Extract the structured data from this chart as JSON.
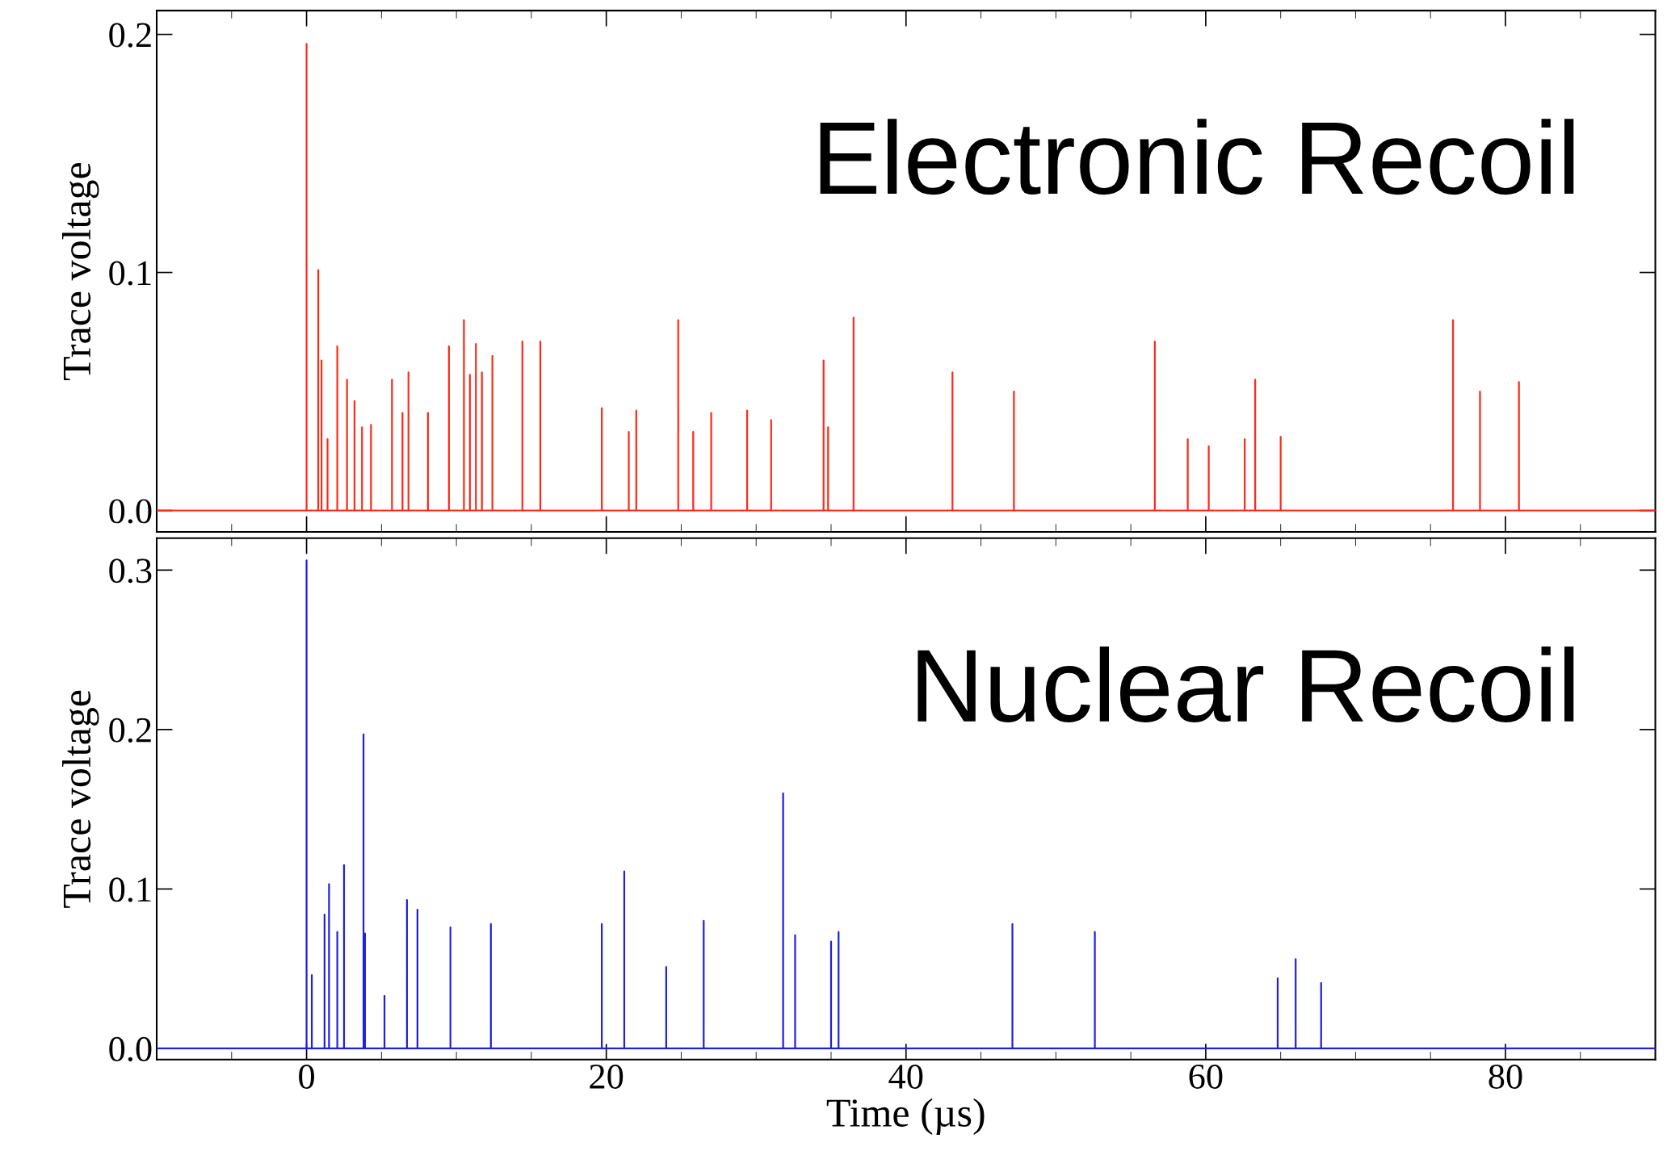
{
  "chart_data": [
    {
      "type": "line",
      "ylabel": "Trace voltage",
      "annotations": [
        "Electronic Recoil"
      ],
      "xlim": [
        -10,
        90
      ],
      "ylim": [
        -0.009,
        0.21
      ],
      "xticks": [
        0,
        20,
        40,
        60,
        80
      ],
      "yticks": [
        {
          "value": 0,
          "label": "0.0"
        },
        {
          "value": 0.1,
          "label": "0.1"
        },
        {
          "value": 0.2,
          "label": "0.2"
        }
      ],
      "tick_labels": "y",
      "grid": false,
      "legend": false,
      "series": [
        {
          "color": "#ff2a1a",
          "x": [
            -10,
            0,
            0,
            0,
            0.78,
            0.78,
            0.78,
            1.0,
            1.0,
            1.0,
            1.4,
            1.4,
            1.4,
            2.05,
            2.05,
            2.05,
            2.7,
            2.7,
            2.7,
            3.2,
            3.2,
            3.2,
            3.7,
            3.7,
            3.7,
            4.3,
            4.3,
            4.3,
            5.7,
            5.7,
            5.7,
            6.4,
            6.4,
            6.4,
            6.8,
            6.8,
            6.8,
            8.1,
            8.1,
            8.1,
            9.5,
            9.5,
            9.5,
            10.5,
            10.5,
            10.5,
            10.9,
            10.9,
            10.9,
            11.3,
            11.3,
            11.3,
            11.7,
            11.7,
            11.7,
            12.4,
            12.4,
            12.4,
            14.4,
            14.4,
            14.4,
            15.6,
            15.6,
            15.6,
            19.7,
            19.7,
            19.7,
            21.5,
            21.5,
            21.5,
            22.0,
            22.0,
            22.0,
            24.8,
            24.8,
            24.8,
            25.8,
            25.8,
            25.8,
            27.0,
            27.0,
            27.0,
            29.4,
            29.4,
            29.4,
            31.0,
            31.0,
            31.0,
            34.5,
            34.5,
            34.5,
            34.8,
            34.8,
            34.8,
            36.5,
            36.5,
            36.5,
            43.1,
            43.1,
            43.1,
            47.2,
            47.2,
            47.2,
            56.6,
            56.6,
            56.6,
            58.8,
            58.8,
            58.8,
            60.2,
            60.2,
            60.2,
            62.6,
            62.6,
            62.6,
            63.3,
            63.3,
            63.3,
            65.0,
            65.0,
            65.0,
            76.5,
            76.5,
            76.5,
            78.3,
            78.3,
            78.3,
            80.9,
            80.9,
            80.9,
            90
          ],
          "values": [
            0,
            0,
            0.196,
            0,
            0,
            0.101,
            0,
            0,
            0.063,
            0,
            0,
            0.03,
            0,
            0,
            0.069,
            0,
            0,
            0.055,
            0,
            0,
            0.046,
            0,
            0,
            0.035,
            0,
            0,
            0.036,
            0,
            0,
            0.055,
            0,
            0,
            0.041,
            0,
            0,
            0.058,
            0,
            0,
            0.041,
            0,
            0,
            0.069,
            0,
            0,
            0.08,
            0,
            0,
            0.057,
            0,
            0,
            0.07,
            0,
            0,
            0.058,
            0,
            0,
            0.065,
            0,
            0,
            0.071,
            0,
            0,
            0.071,
            0,
            0,
            0.043,
            0,
            0,
            0.033,
            0,
            0,
            0.042,
            0,
            0,
            0.08,
            0,
            0,
            0.033,
            0,
            0,
            0.041,
            0,
            0,
            0.042,
            0,
            0,
            0.038,
            0,
            0,
            0.063,
            0,
            0,
            0.035,
            0,
            0,
            0.081,
            0,
            0,
            0.058,
            0,
            0,
            0.05,
            0,
            0,
            0.071,
            0,
            0,
            0.03,
            0,
            0,
            0.027,
            0,
            0,
            0.03,
            0,
            0,
            0.055,
            0,
            0,
            0.031,
            0,
            0,
            0.08,
            0,
            0,
            0.05,
            0,
            0,
            0.054,
            0,
            0
          ]
        }
      ]
    },
    {
      "type": "line",
      "xlabel": "Time (µs)",
      "ylabel": "Trace voltage",
      "annotations": [
        "Nuclear Recoil"
      ],
      "xlim": [
        -10,
        90
      ],
      "ylim": [
        -0.007,
        0.32
      ],
      "xticks": [
        0,
        20,
        40,
        60,
        80
      ],
      "yticks": [
        {
          "value": 0,
          "label": "0.0"
        },
        {
          "value": 0.1,
          "label": "0.1"
        },
        {
          "value": 0.2,
          "label": "0.2"
        },
        {
          "value": 0.3,
          "label": "0.3"
        }
      ],
      "grid": false,
      "legend": false,
      "series": [
        {
          "color": "#2020e0",
          "x": [
            -10,
            0,
            0,
            0,
            0.35,
            0.35,
            0.35,
            1.2,
            1.2,
            1.2,
            1.5,
            1.5,
            1.5,
            2.05,
            2.05,
            2.05,
            2.5,
            2.5,
            2.5,
            3.8,
            3.8,
            3.8,
            3.9,
            3.9,
            3.9,
            5.2,
            5.2,
            5.2,
            6.7,
            6.7,
            6.7,
            7.4,
            7.4,
            7.4,
            9.6,
            9.6,
            9.6,
            12.3,
            12.3,
            12.3,
            19.7,
            19.7,
            19.7,
            21.2,
            21.2,
            21.2,
            24.0,
            24.0,
            24.0,
            26.5,
            26.5,
            26.5,
            31.8,
            31.8,
            31.8,
            32.6,
            32.6,
            32.6,
            35.0,
            35.0,
            35.0,
            35.5,
            35.5,
            35.5,
            47.1,
            47.1,
            47.1,
            52.6,
            52.6,
            52.6,
            64.8,
            64.8,
            64.8,
            66.0,
            66.0,
            66.0,
            67.7,
            67.7,
            67.7,
            90
          ],
          "values": [
            0,
            0,
            0.306,
            0,
            0,
            0.046,
            0,
            0,
            0.084,
            0,
            0,
            0.103,
            0,
            0,
            0.073,
            0,
            0,
            0.115,
            0,
            0,
            0.197,
            0,
            0,
            0.072,
            0,
            0,
            0.033,
            0,
            0,
            0.093,
            0,
            0,
            0.087,
            0,
            0,
            0.076,
            0,
            0,
            0.078,
            0,
            0,
            0.078,
            0,
            0,
            0.111,
            0,
            0,
            0.051,
            0,
            0,
            0.08,
            0,
            0,
            0.16,
            0,
            0,
            0.071,
            0,
            0,
            0.067,
            0,
            0,
            0.073,
            0,
            0,
            0.078,
            0,
            0,
            0.073,
            0,
            0,
            0.044,
            0,
            0,
            0.056,
            0,
            0,
            0.041,
            0,
            0
          ]
        }
      ]
    }
  ]
}
